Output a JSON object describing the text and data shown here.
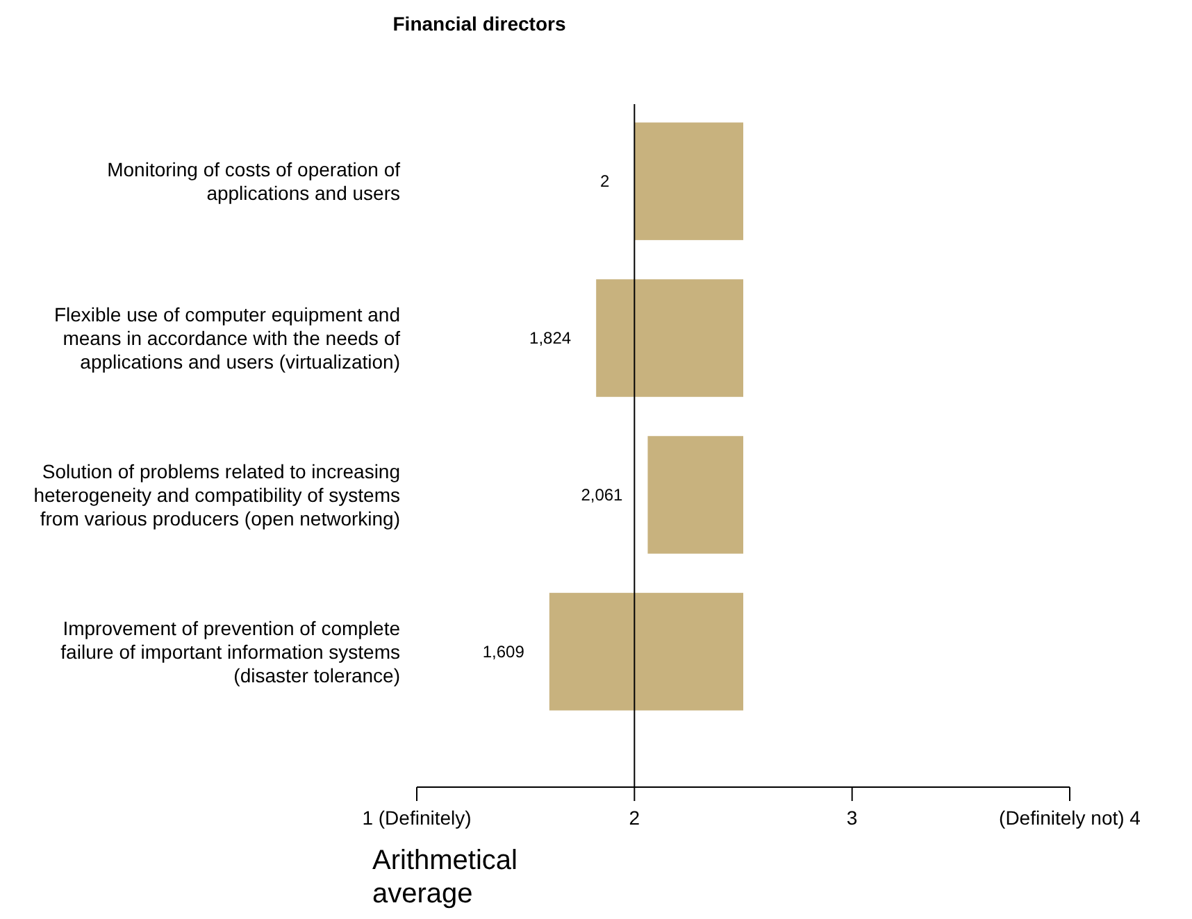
{
  "chart_data": {
    "type": "bar",
    "orientation": "horizontal",
    "title": "Financial directors",
    "xlabel": "Arithmetical average",
    "categories": [
      "Monitoring of costs of operation of applications and users",
      "Flexible use of computer equipment and means in accordance with the needs of applications and users (virtualization)",
      "Solution of problems related to increasing heterogeneity and compatibility of systems from various producers (open networking)",
      "Improvement of prevention of complete failure of important information systems (disaster tolerance)"
    ],
    "base": [
      2.5,
      2.5,
      2.5,
      2.5
    ],
    "values": [
      -0.5,
      -0.676,
      -0.439,
      -0.891
    ],
    "annotations": [
      {
        "text": "2",
        "x": 2,
        "y": "Monitoring of costs of operation of applications and users"
      },
      {
        "text": "1,824",
        "x": 1.824,
        "y": "Flexible use of computer equipment and means in accordance with the needs of applications and users (virtualization)"
      },
      {
        "text": "2,061",
        "x": 2.061,
        "y": "Solution of problems related to increasing heterogeneity and compatibility of systems from various producers (open networking)"
      },
      {
        "text": "1,609",
        "x": 1.609,
        "y": "Improvement of prevention of complete failure of important information systems (disaster tolerance)"
      }
    ],
    "color": "#c8b27e",
    "xlim": [
      1,
      4
    ],
    "xticks": [
      {
        "value": 1,
        "label": "1 (Definitely)"
      },
      2,
      3,
      {
        "value": 4,
        "label": "(Definitely not) 4"
      }
    ],
    "ref_lines": [
      {
        "axis": "x",
        "value": 2,
        "color": "#000000"
      }
    ],
    "grid": false,
    "legend": false
  }
}
